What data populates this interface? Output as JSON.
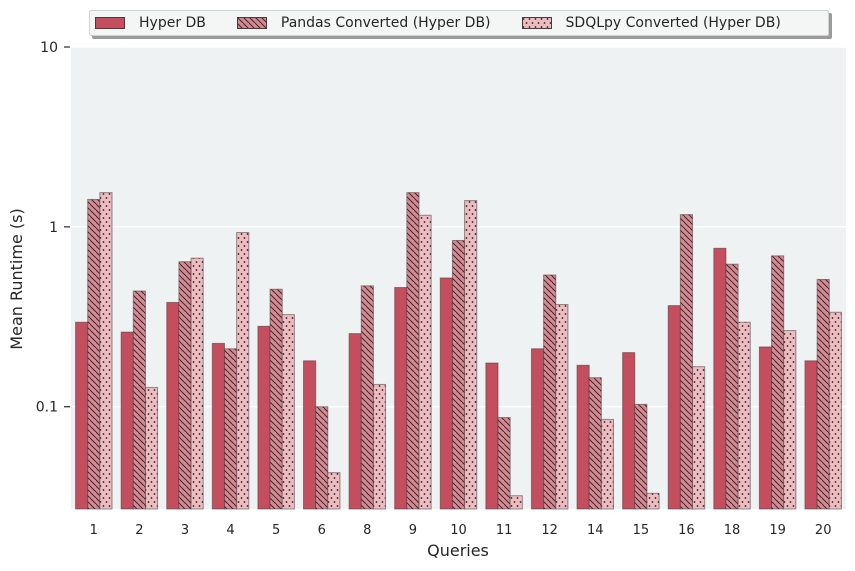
{
  "chart_data": {
    "type": "bar",
    "xlabel": "Queries",
    "ylabel": "Mean Runtime (s)",
    "yscale": "log",
    "ylim": [
      0.027,
      10
    ],
    "yticks": [
      {
        "value": 0.1,
        "label": "0.1"
      },
      {
        "value": 1,
        "label": "1"
      },
      {
        "value": 10,
        "label": "10"
      }
    ],
    "grid": true,
    "legend_position": "top",
    "categories": [
      "1",
      "2",
      "3",
      "4",
      "5",
      "6",
      "8",
      "9",
      "10",
      "11",
      "12",
      "14",
      "15",
      "16",
      "18",
      "19",
      "20"
    ],
    "series": [
      {
        "name": "Hyper DB",
        "color": "#c44e5e",
        "hatch": "none",
        "values": [
          0.295,
          0.26,
          0.38,
          0.225,
          0.28,
          0.18,
          0.255,
          0.46,
          0.52,
          0.175,
          0.21,
          0.17,
          0.2,
          0.365,
          0.76,
          0.215,
          0.18
        ]
      },
      {
        "name": "Pandas Converted (Hyper DB)",
        "color": "#d58a93",
        "hatch": "diagonal",
        "values": [
          1.42,
          0.44,
          0.64,
          0.21,
          0.45,
          0.1,
          0.47,
          1.55,
          0.84,
          0.087,
          0.54,
          0.145,
          0.103,
          1.17,
          0.62,
          0.69,
          0.51
        ]
      },
      {
        "name": "SDQLpy Converted (Hyper DB)",
        "color": "#ecbcc1",
        "hatch": "dots",
        "values": [
          1.55,
          0.128,
          0.67,
          0.93,
          0.325,
          0.043,
          0.133,
          1.16,
          1.4,
          0.032,
          0.37,
          0.085,
          0.033,
          0.167,
          0.295,
          0.265,
          0.335
        ]
      }
    ]
  }
}
